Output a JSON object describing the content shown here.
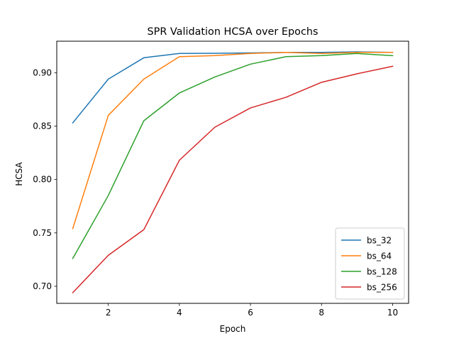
{
  "chart_data": {
    "type": "line",
    "title": "SPR Validation HCSA over Epochs",
    "xlabel": "Epoch",
    "ylabel": "HCSA",
    "x": [
      1,
      2,
      3,
      4,
      5,
      6,
      7,
      8,
      9,
      10
    ],
    "xlim": [
      0.55,
      10.45
    ],
    "ylim": [
      0.684,
      0.9295
    ],
    "xticks": [
      2,
      4,
      6,
      8,
      10
    ],
    "yticks": [
      0.7,
      0.75,
      0.8,
      0.85,
      0.9
    ],
    "xtick_labels": [
      "2",
      "4",
      "6",
      "8",
      "10"
    ],
    "ytick_labels": [
      "0.70",
      "0.75",
      "0.80",
      "0.85",
      "0.90"
    ],
    "grid": false,
    "legend_position": "lower-right",
    "series": [
      {
        "name": "bs_32",
        "color": "#1f77b4",
        "values": [
          0.853,
          0.894,
          0.914,
          0.918,
          0.9182,
          0.9185,
          0.919,
          0.919,
          0.9195,
          0.919
        ]
      },
      {
        "name": "bs_64",
        "color": "#ff7f0e",
        "values": [
          0.754,
          0.86,
          0.894,
          0.915,
          0.916,
          0.918,
          0.919,
          0.918,
          0.919,
          0.919
        ]
      },
      {
        "name": "bs_128",
        "color": "#2ca02c",
        "values": [
          0.726,
          0.785,
          0.855,
          0.881,
          0.896,
          0.908,
          0.915,
          0.916,
          0.918,
          0.916
        ]
      },
      {
        "name": "bs_256",
        "color": "#d62728",
        "values": [
          0.694,
          0.729,
          0.753,
          0.818,
          0.849,
          0.867,
          0.877,
          0.891,
          0.899,
          0.906
        ]
      }
    ]
  }
}
